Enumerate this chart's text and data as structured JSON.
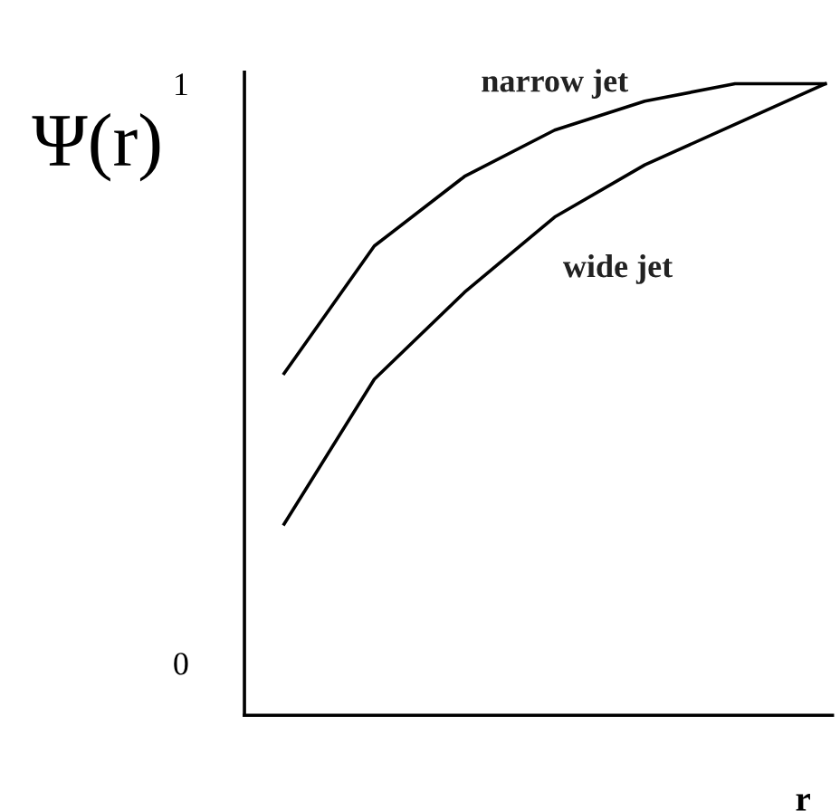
{
  "chart_data": {
    "type": "line",
    "ylabel": "Ψ(r)",
    "xlabel": "r",
    "categories": [
      null,
      null,
      null,
      null,
      null,
      null,
      null
    ],
    "series": [
      {
        "name": "narrow jet",
        "color": "#000000",
        "values": [
          0.5,
          0.72,
          0.84,
          0.92,
          0.97,
          1.0,
          1.0
        ]
      },
      {
        "name": "wide jet",
        "color": "#000000",
        "values": [
          0.24,
          0.49,
          0.64,
          0.77,
          0.86,
          0.93,
          1.0
        ]
      }
    ],
    "ylim": [
      -0.09,
      1.02
    ],
    "yticks": [
      0,
      1
    ],
    "grid": false,
    "legend": false,
    "marker": "none",
    "line_style": "solid"
  }
}
